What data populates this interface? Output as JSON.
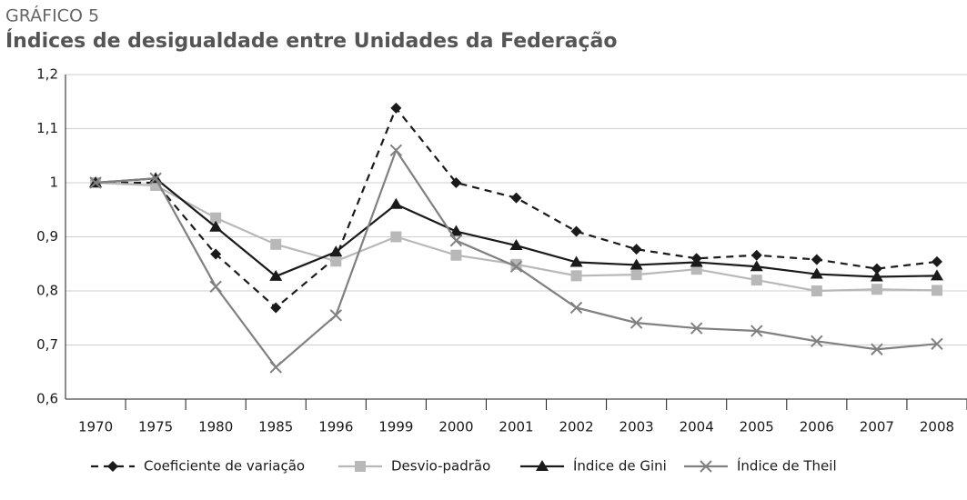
{
  "chart_data": {
    "type": "line",
    "label": "GRÁFICO 5",
    "title": "Índices de desigualdade entre Unidades da Federação",
    "categories": [
      "1970",
      "1975",
      "1980",
      "1985",
      "1996",
      "1999",
      "2000",
      "2001",
      "2002",
      "2003",
      "2004",
      "2005",
      "2006",
      "2007",
      "2008"
    ],
    "series": [
      {
        "name": "Coeficiente de variação",
        "color": "#1a1a1a",
        "dashed": true,
        "marker": "diamond",
        "values": [
          1.0,
          1.0,
          0.868,
          0.769,
          0.862,
          1.138,
          1.0,
          0.972,
          0.91,
          0.877,
          0.86,
          0.866,
          0.858,
          0.841,
          0.854
        ]
      },
      {
        "name": "Desvio-padrão",
        "color": "#b8b8b8",
        "dashed": false,
        "marker": "square",
        "values": [
          1.0,
          0.995,
          0.935,
          0.886,
          0.855,
          0.9,
          0.866,
          0.849,
          0.828,
          0.83,
          0.84,
          0.82,
          0.8,
          0.803,
          0.801
        ]
      },
      {
        "name": "Índice de Gini",
        "color": "#1a1a1a",
        "dashed": false,
        "marker": "triangle",
        "values": [
          1.0,
          1.008,
          0.918,
          0.827,
          0.872,
          0.96,
          0.91,
          0.884,
          0.853,
          0.848,
          0.853,
          0.845,
          0.831,
          0.826,
          0.828
        ]
      },
      {
        "name": "Índice de Theil",
        "color": "#808080",
        "dashed": false,
        "marker": "x",
        "values": [
          1.0,
          1.008,
          0.808,
          0.659,
          0.755,
          1.06,
          0.893,
          0.845,
          0.769,
          0.741,
          0.731,
          0.726,
          0.707,
          0.692,
          0.702
        ]
      }
    ],
    "ylim": [
      0.6,
      1.2
    ],
    "yticks": [
      {
        "value": 0.6,
        "label": "0,6"
      },
      {
        "value": 0.7,
        "label": "0,7"
      },
      {
        "value": 0.8,
        "label": "0,8"
      },
      {
        "value": 0.9,
        "label": "0,9"
      },
      1,
      {
        "value": 1.1,
        "label": "1,1"
      },
      {
        "value": 1.2,
        "label": "1,2"
      }
    ],
    "grid": true,
    "legend": "bottom"
  }
}
